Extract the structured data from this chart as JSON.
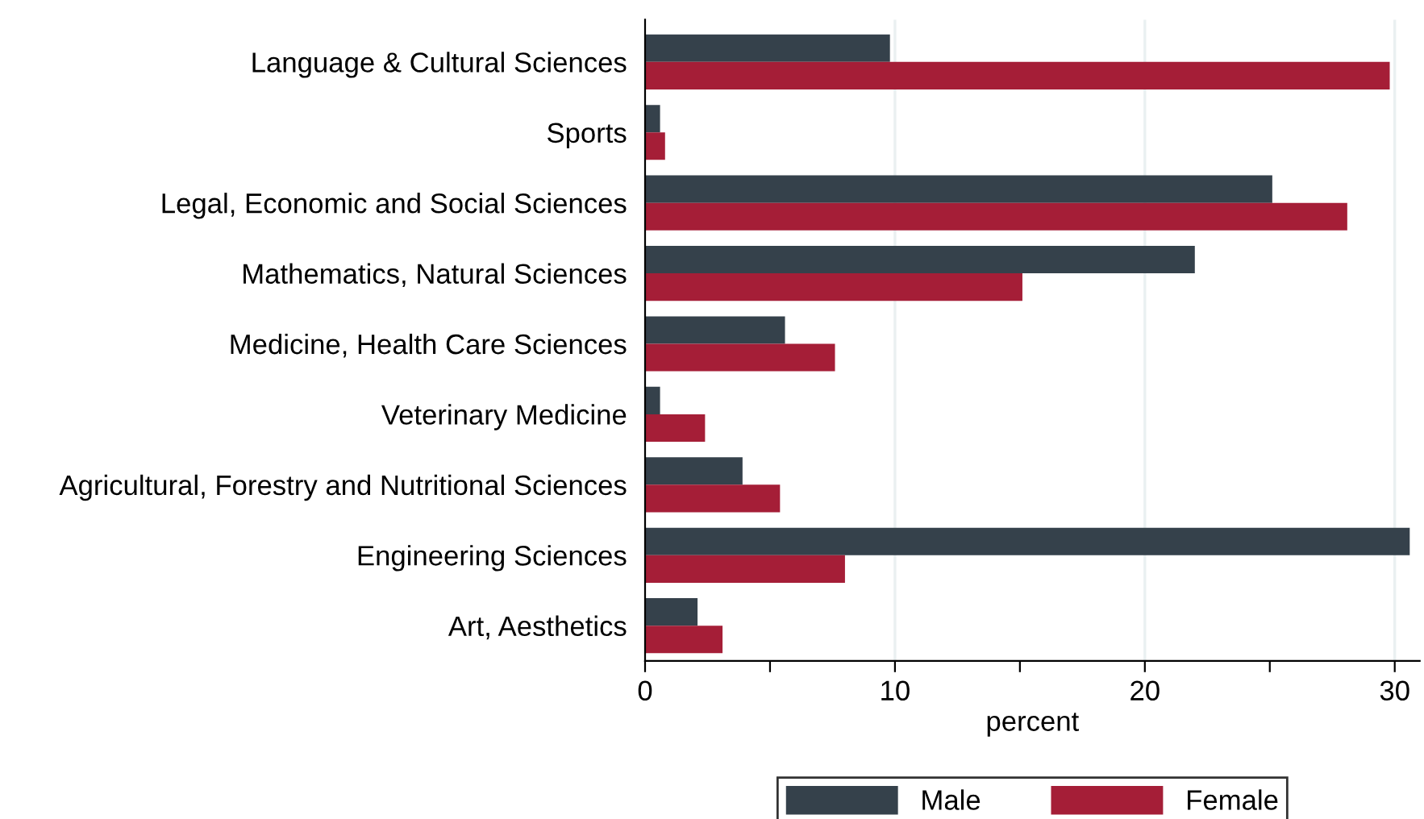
{
  "chart_data": {
    "type": "bar",
    "orientation": "horizontal",
    "xlabel": "percent",
    "categories": [
      "Language & Cultural Sciences",
      "Sports",
      "Legal, Economic and Social Sciences",
      "Mathematics, Natural Sciences",
      "Medicine, Health Care Sciences",
      "Veterinary Medicine",
      "Agricultural, Forestry and Nutritional Sciences",
      "Engineering Sciences",
      "Art, Aesthetics"
    ],
    "series": [
      {
        "name": "Male",
        "color": "#35414b",
        "values": [
          9.8,
          0.6,
          25.1,
          22.0,
          5.6,
          0.6,
          3.9,
          30.6,
          2.1
        ]
      },
      {
        "name": "Female",
        "color": "#a51e37",
        "values": [
          29.8,
          0.8,
          28.1,
          15.1,
          7.6,
          2.4,
          5.4,
          8.0,
          3.1
        ]
      }
    ],
    "xlim": [
      0,
      31
    ],
    "xticks": [
      0,
      {
        "value": 5,
        "label": null
      },
      10,
      {
        "value": 15,
        "label": null
      },
      20,
      {
        "value": 25,
        "label": null
      },
      30
    ],
    "grid": "x",
    "legend": "bottom"
  }
}
